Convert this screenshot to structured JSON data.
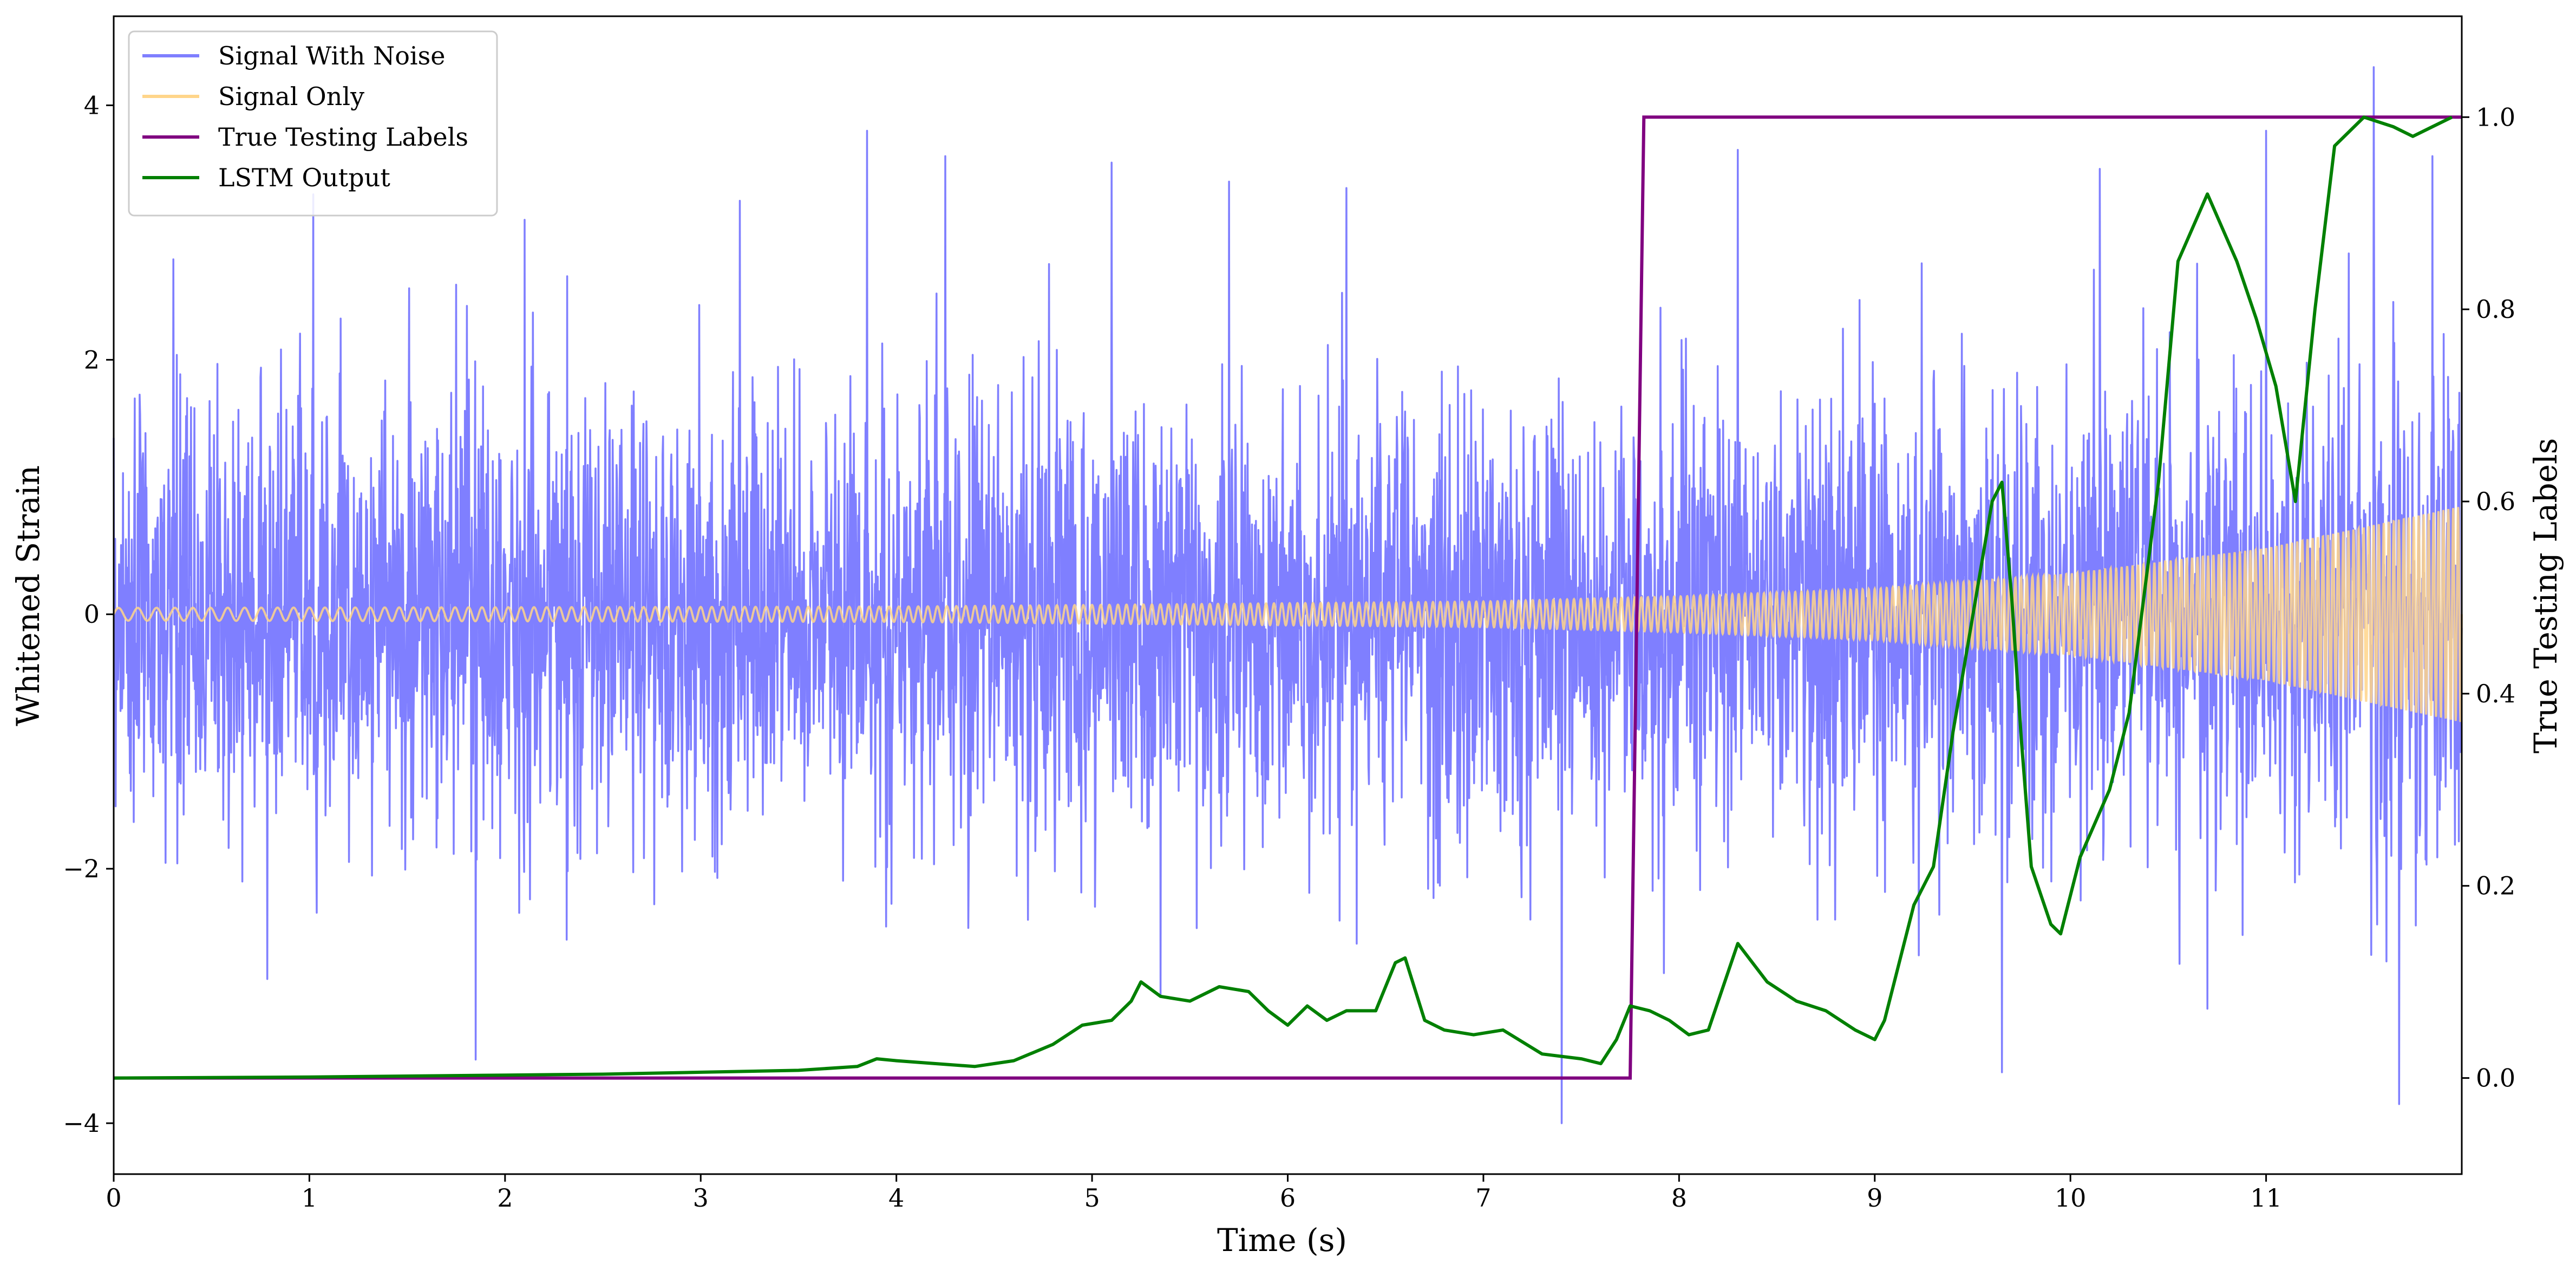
{
  "chart_data": {
    "type": "line",
    "xlabel": "Time (s)",
    "ylabel": "Whitened Strain",
    "y2label": "True Testing Labels",
    "xlim": [
      0,
      12
    ],
    "ylim": [
      -4.4,
      4.7
    ],
    "y2lim": [
      -0.1,
      1.105
    ],
    "x_ticks": [
      0,
      1,
      2,
      3,
      4,
      5,
      6,
      7,
      8,
      9,
      10,
      11
    ],
    "y_ticks": [
      -4,
      -2,
      0,
      2,
      4
    ],
    "y2_ticks": [
      0.0,
      0.2,
      0.4,
      0.6,
      0.8,
      1.0
    ],
    "x_tick_labels": [
      "0",
      "1",
      "2",
      "3",
      "4",
      "5",
      "6",
      "7",
      "8",
      "9",
      "10",
      "11"
    ],
    "y_tick_labels": [
      "−4",
      "−2",
      "0",
      "2",
      "4"
    ],
    "y2_tick_labels": [
      "0.0",
      "0.2",
      "0.4",
      "0.6",
      "0.8",
      "1.0"
    ],
    "grid": false,
    "legend_position": "top-left",
    "legend": [
      "Signal With Noise",
      "Signal Only",
      "True Testing Labels",
      "LSTM Output"
    ],
    "series": [
      {
        "name": "Signal With Noise",
        "axis": "left",
        "color": "#7f7fff",
        "noise_std": 0.85,
        "sample_rate_hz": 400,
        "spikes": [
          [
            1.02,
            3.3
          ],
          [
            1.85,
            -3.5
          ],
          [
            2.1,
            3.1
          ],
          [
            3.2,
            3.25
          ],
          [
            3.85,
            3.8
          ],
          [
            4.25,
            3.6
          ],
          [
            5.1,
            3.55
          ],
          [
            5.35,
            -3.0
          ],
          [
            5.7,
            3.4
          ],
          [
            6.3,
            3.35
          ],
          [
            7.4,
            -4.0
          ],
          [
            8.3,
            3.65
          ],
          [
            9.65,
            -3.6
          ],
          [
            10.15,
            3.5
          ],
          [
            10.7,
            -3.1
          ],
          [
            11.0,
            3.8
          ],
          [
            11.55,
            4.3
          ],
          [
            11.68,
            -3.85
          ],
          [
            11.85,
            3.6
          ]
        ]
      },
      {
        "name": "Signal Only",
        "axis": "left",
        "color": "#ffd58a",
        "chirp_freq_hz": [
          10,
          40
        ],
        "envelope": [
          [
            0,
            0.05
          ],
          [
            4,
            0.06
          ],
          [
            7,
            0.1
          ],
          [
            8,
            0.14
          ],
          [
            9,
            0.2
          ],
          [
            10,
            0.32
          ],
          [
            11,
            0.52
          ],
          [
            12,
            0.85
          ]
        ]
      },
      {
        "name": "True Testing Labels",
        "axis": "right",
        "color": "#800080",
        "x": [
          0,
          7.75,
          7.82,
          12
        ],
        "y": [
          0,
          0,
          1,
          1
        ]
      },
      {
        "name": "LSTM Output",
        "axis": "right",
        "color": "#008000",
        "x": [
          0,
          1,
          2,
          2.5,
          3,
          3.5,
          3.8,
          3.9,
          4.0,
          4.2,
          4.4,
          4.6,
          4.8,
          4.95,
          5.1,
          5.2,
          5.25,
          5.35,
          5.5,
          5.65,
          5.8,
          5.9,
          6.0,
          6.1,
          6.2,
          6.3,
          6.45,
          6.55,
          6.6,
          6.7,
          6.8,
          6.95,
          7.1,
          7.3,
          7.5,
          7.6,
          7.68,
          7.75,
          7.85,
          7.95,
          8.05,
          8.15,
          8.3,
          8.45,
          8.6,
          8.75,
          8.9,
          9.0,
          9.05,
          9.1,
          9.2,
          9.3,
          9.4,
          9.5,
          9.6,
          9.65,
          9.7,
          9.75,
          9.8,
          9.9,
          9.95,
          10.05,
          10.2,
          10.3,
          10.45,
          10.55,
          10.7,
          10.85,
          10.95,
          11.05,
          11.15,
          11.25,
          11.35,
          11.5,
          11.65,
          11.75,
          11.85,
          11.95
        ],
        "y": [
          0.0,
          0.001,
          0.003,
          0.004,
          0.006,
          0.008,
          0.012,
          0.02,
          0.018,
          0.015,
          0.012,
          0.018,
          0.035,
          0.055,
          0.06,
          0.08,
          0.1,
          0.085,
          0.08,
          0.095,
          0.09,
          0.07,
          0.055,
          0.075,
          0.06,
          0.07,
          0.07,
          0.12,
          0.125,
          0.06,
          0.05,
          0.045,
          0.05,
          0.025,
          0.02,
          0.015,
          0.04,
          0.075,
          0.07,
          0.06,
          0.045,
          0.05,
          0.14,
          0.1,
          0.08,
          0.07,
          0.05,
          0.04,
          0.06,
          0.1,
          0.18,
          0.22,
          0.36,
          0.48,
          0.6,
          0.62,
          0.5,
          0.35,
          0.22,
          0.16,
          0.15,
          0.23,
          0.3,
          0.38,
          0.62,
          0.85,
          0.92,
          0.85,
          0.79,
          0.72,
          0.6,
          0.8,
          0.97,
          1.0,
          0.99,
          0.98,
          0.99,
          1.0
        ]
      }
    ]
  }
}
